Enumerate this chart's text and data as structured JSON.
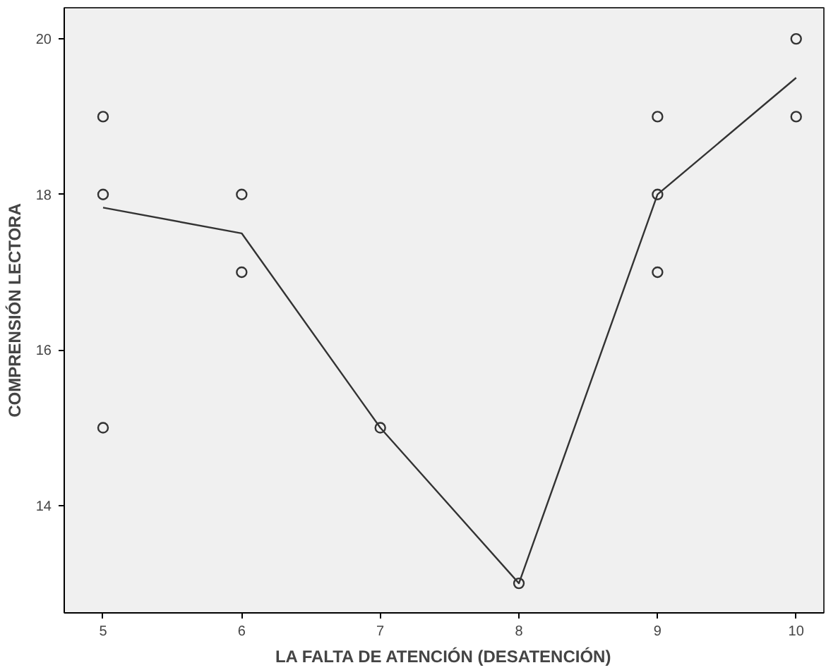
{
  "chart_data": {
    "type": "scatter",
    "xlabel": "LA FALTA DE ATENCIÓN (DESATENCIÓN)",
    "ylabel": "COMPRENSIÓN LECTORA",
    "xlim": [
      4.72,
      10.2
    ],
    "ylim": [
      12.62,
      20.4
    ],
    "xticks": [
      5,
      6,
      7,
      8,
      9,
      10
    ],
    "yticks": [
      14,
      16,
      18,
      20
    ],
    "grid": false,
    "series": [
      {
        "marker": "circle",
        "color": "#333333",
        "x": [
          5,
          5,
          5,
          6,
          6,
          7,
          8,
          9,
          9,
          9,
          10,
          10
        ],
        "values": [
          19,
          18,
          15,
          18,
          17,
          15,
          13,
          19,
          18,
          17,
          20,
          19
        ]
      },
      {
        "type": "line",
        "marker": "none",
        "color": "#333333",
        "x": [
          5,
          6,
          7,
          8,
          9,
          10
        ],
        "values": [
          17.83,
          17.5,
          15,
          13,
          18,
          19.5
        ]
      }
    ]
  }
}
